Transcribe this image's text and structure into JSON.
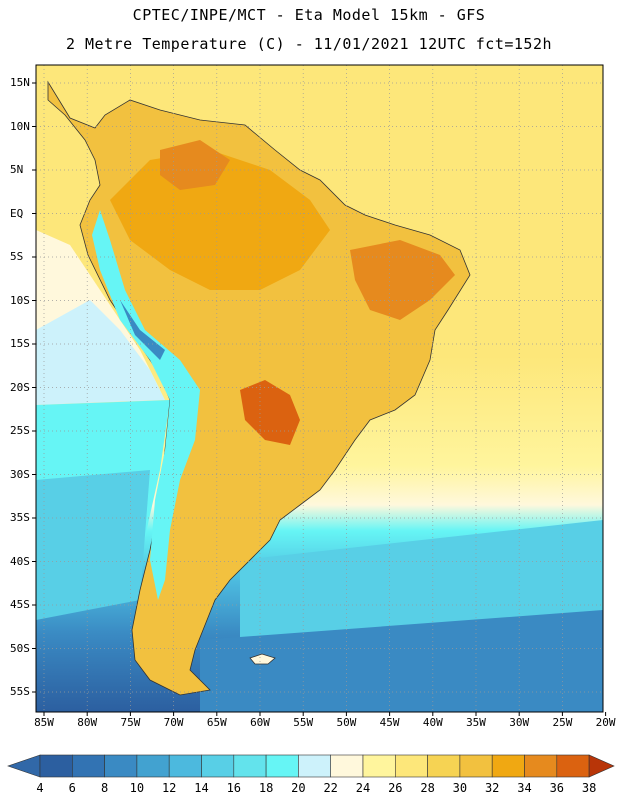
{
  "header": {
    "title_line1": "CPTEC/INPE/MCT -  Eta Model 15km - GFS",
    "title_line2": "2 Metre Temperature (C) - 11/01/2021 12UTC fct=152h"
  },
  "map": {
    "lat_labels": [
      "15N",
      "10N",
      "5N",
      "EQ",
      "5S",
      "10S",
      "15S",
      "20S",
      "25S",
      "30S",
      "35S",
      "40S",
      "45S",
      "50S",
      "55S"
    ],
    "lon_labels": [
      "85W",
      "80W",
      "75W",
      "70W",
      "65W",
      "60W",
      "55W",
      "50W",
      "45W",
      "40W",
      "35W",
      "30W",
      "25W",
      "20W"
    ]
  },
  "colorbar": {
    "labels": [
      "4",
      "6",
      "8",
      "10",
      "12",
      "14",
      "16",
      "18",
      "20",
      "22",
      "24",
      "26",
      "28",
      "30",
      "32",
      "34",
      "36",
      "38"
    ],
    "colors": [
      "#2c5fa0",
      "#3273b3",
      "#3a8ac3",
      "#42a2d0",
      "#4cb9de",
      "#58cfe6",
      "#63e3ec",
      "#66f5f5",
      "#cdf2fb",
      "#fff8dc",
      "#fff59d",
      "#fde77a",
      "#f6d353",
      "#f2c13f",
      "#f0a812",
      "#e68a1e",
      "#db6210",
      "#c64003"
    ],
    "under_color": "#3168a8",
    "over_color": "#b83508"
  }
}
